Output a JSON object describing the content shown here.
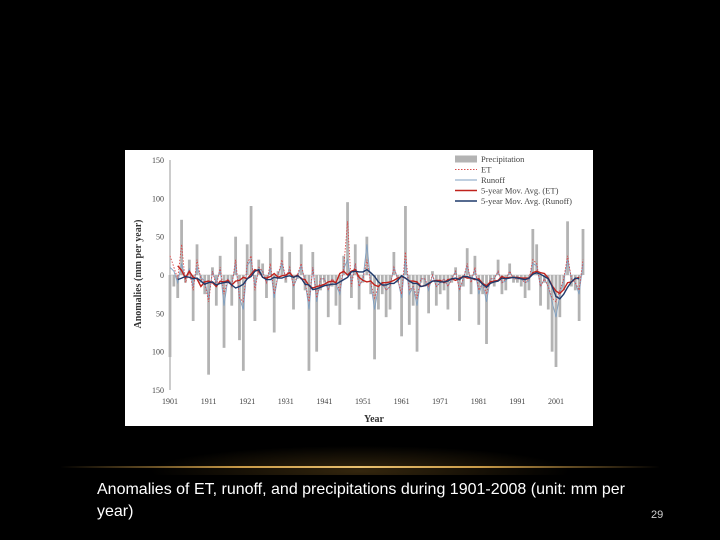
{
  "slide": {
    "caption": "Anomalies of ET, runoff, and precipitations during 1901-2008 (unit: mm per year)",
    "page_number": "29"
  },
  "colors": {
    "background": "#000000",
    "accent_line": "#c89a48",
    "precipitation": "#b3b3b3",
    "et": "#d94a4a",
    "runoff": "#7f9fc0",
    "et_ma": "#c0221c",
    "runoff_ma": "#1f3a6b"
  },
  "chart_data": {
    "type": "bar",
    "title": "",
    "xlabel": "Year",
    "ylabel": "Anomalies (mm per year)",
    "xlim": [
      1901,
      2008
    ],
    "ylim": [
      -150,
      150
    ],
    "xticks": [
      1901,
      1911,
      1921,
      1931,
      1941,
      1951,
      1961,
      1971,
      1981,
      1991,
      2001
    ],
    "yticks": [
      150,
      100,
      50,
      0,
      -50,
      -100,
      -150
    ],
    "x": [
      1901,
      1902,
      1903,
      1904,
      1905,
      1906,
      1907,
      1908,
      1909,
      1910,
      1911,
      1912,
      1913,
      1914,
      1915,
      1916,
      1917,
      1918,
      1919,
      1920,
      1921,
      1922,
      1923,
      1924,
      1925,
      1926,
      1927,
      1928,
      1929,
      1930,
      1931,
      1932,
      1933,
      1934,
      1935,
      1936,
      1937,
      1938,
      1939,
      1940,
      1941,
      1942,
      1943,
      1944,
      1945,
      1946,
      1947,
      1948,
      1949,
      1950,
      1951,
      1952,
      1953,
      1954,
      1955,
      1956,
      1957,
      1958,
      1959,
      1960,
      1961,
      1962,
      1963,
      1964,
      1965,
      1966,
      1967,
      1968,
      1969,
      1970,
      1971,
      1972,
      1973,
      1974,
      1975,
      1976,
      1977,
      1978,
      1979,
      1980,
      1981,
      1982,
      1983,
      1984,
      1985,
      1986,
      1987,
      1988,
      1989,
      1990,
      1991,
      1992,
      1993,
      1994,
      1995,
      1996,
      1997,
      1998,
      1999,
      2000,
      2001,
      2002,
      2003,
      2004,
      2005,
      2006,
      2007,
      2008
    ],
    "legend": {
      "placement": "top-right",
      "entries": [
        "Precipitation",
        "ET",
        "Runoff",
        "5-year Mov. Avg. (ET)",
        "5-year Mov. Avg. (Runoff)"
      ]
    },
    "series": [
      {
        "name": "Precipitation",
        "kind": "bar",
        "values": [
          -107,
          -15,
          -30,
          72,
          -10,
          20,
          -60,
          40,
          -10,
          -25,
          -130,
          10,
          -40,
          25,
          -95,
          -10,
          -40,
          50,
          -85,
          -125,
          40,
          90,
          -60,
          20,
          15,
          -30,
          35,
          -75,
          5,
          50,
          -10,
          30,
          -45,
          -5,
          40,
          -20,
          -125,
          30,
          -100,
          -20,
          -10,
          -55,
          -15,
          -40,
          -65,
          25,
          95,
          -30,
          40,
          -45,
          -10,
          50,
          -25,
          -110,
          -45,
          -25,
          -55,
          -45,
          30,
          -10,
          -80,
          90,
          -65,
          -40,
          -100,
          -10,
          -15,
          -50,
          5,
          -40,
          -25,
          -20,
          -45,
          -10,
          10,
          -60,
          -15,
          35,
          -25,
          25,
          -65,
          -25,
          -90,
          -10,
          -15,
          20,
          -25,
          -20,
          15,
          -10,
          -10,
          -15,
          -30,
          -20,
          60,
          40,
          -40,
          -10,
          -45,
          -100,
          -120,
          -55,
          -20,
          70,
          -15,
          -20,
          -60,
          60
        ]
      },
      {
        "name": "ET",
        "kind": "line",
        "values": [
          25,
          10,
          -5,
          40,
          -10,
          5,
          -20,
          20,
          -5,
          -10,
          -35,
          5,
          -15,
          10,
          -25,
          -5,
          -15,
          20,
          -30,
          -35,
          15,
          25,
          -20,
          10,
          5,
          -10,
          15,
          -25,
          0,
          20,
          -5,
          10,
          -15,
          0,
          15,
          -10,
          -35,
          10,
          -30,
          -5,
          -5,
          -20,
          -5,
          -10,
          -20,
          10,
          70,
          -15,
          15,
          -15,
          -5,
          20,
          -10,
          -30,
          -15,
          -10,
          -20,
          -15,
          10,
          -5,
          -25,
          30,
          -20,
          -15,
          -30,
          -5,
          -5,
          -15,
          0,
          -15,
          -10,
          -5,
          -15,
          -5,
          5,
          -20,
          -5,
          15,
          -10,
          10,
          -20,
          -10,
          -25,
          -5,
          -5,
          5,
          -10,
          -5,
          5,
          -5,
          -5,
          -5,
          -10,
          -5,
          20,
          15,
          -15,
          -5,
          -15,
          -30,
          -35,
          -20,
          -5,
          25,
          -5,
          -10,
          -20,
          20
        ]
      },
      {
        "name": "Runoff",
        "kind": "line",
        "values": [
          10,
          5,
          -10,
          15,
          -5,
          8,
          -15,
          10,
          -3,
          -8,
          -30,
          5,
          -10,
          8,
          -40,
          -5,
          -12,
          15,
          -30,
          -45,
          12,
          20,
          -15,
          8,
          5,
          -10,
          10,
          -30,
          0,
          15,
          -5,
          8,
          -15,
          -3,
          12,
          -8,
          -45,
          10,
          -35,
          -5,
          -5,
          -20,
          -5,
          -12,
          -25,
          8,
          20,
          -10,
          15,
          -15,
          -5,
          40,
          -10,
          -45,
          -15,
          -10,
          -20,
          -15,
          10,
          -5,
          -30,
          20,
          -25,
          -15,
          -40,
          -5,
          -5,
          -20,
          0,
          -15,
          -10,
          -5,
          -15,
          -5,
          5,
          -20,
          -5,
          12,
          -8,
          8,
          -25,
          -10,
          -35,
          -5,
          -5,
          5,
          -10,
          -8,
          5,
          -5,
          -5,
          -5,
          -10,
          -8,
          15,
          12,
          -15,
          -5,
          -15,
          -35,
          -55,
          -25,
          -8,
          20,
          -5,
          -10,
          -25,
          15
        ]
      },
      {
        "name": "5-year Mov. Avg. (ET)",
        "kind": "line",
        "values": [
          null,
          null,
          12,
          6,
          -4,
          5,
          -3,
          -5,
          -15,
          -9,
          -8,
          -10,
          -15,
          -8,
          -9,
          -7,
          -13,
          -8,
          -7,
          -3,
          -5,
          1,
          7,
          5,
          -3,
          -4,
          -2,
          2,
          -3,
          -1,
          0,
          3,
          -3,
          0,
          -5,
          -6,
          -14,
          -17,
          -15,
          -14,
          -12,
          -9,
          -8,
          -10,
          2,
          5,
          0,
          5,
          7,
          -3,
          -7,
          -9,
          -8,
          -13,
          -15,
          -10,
          -10,
          -9,
          -7,
          -4,
          -2,
          -4,
          -8,
          -8,
          -9,
          -15,
          -14,
          -12,
          -8,
          -7,
          -7,
          -10,
          -6,
          -5,
          -7,
          -4,
          -2,
          -4,
          -4,
          -6,
          -5,
          -11,
          -14,
          -9,
          -8,
          -7,
          -2,
          -4,
          -3,
          -3,
          -3,
          -4,
          -4,
          -4,
          3,
          5,
          3,
          2,
          -4,
          -14,
          -21,
          -24,
          -19,
          -10,
          -9,
          -5,
          -3,
          null
        ]
      },
      {
        "name": "5-year Mov. Avg. (Runoff)",
        "kind": "line",
        "values": [
          null,
          null,
          -6,
          -4,
          -2,
          -3,
          -5,
          -4,
          -8,
          -12,
          -10,
          -9,
          -13,
          -11,
          -10,
          -9,
          -13,
          -17,
          -15,
          -12,
          -5,
          -2,
          5,
          7,
          -3,
          -6,
          -6,
          -3,
          -4,
          -4,
          -2,
          -1,
          -3,
          -1,
          -4,
          -12,
          -13,
          -19,
          -18,
          -16,
          -14,
          -13,
          -12,
          -12,
          -9,
          -6,
          -3,
          4,
          5,
          4,
          4,
          7,
          3,
          -2,
          -9,
          -13,
          -13,
          -11,
          -11,
          -7,
          -1,
          -4,
          -8,
          -11,
          -11,
          -15,
          -14,
          -11,
          -8,
          -8,
          -9,
          -9,
          -8,
          -5,
          -4,
          -6,
          -2,
          -2,
          -4,
          -5,
          -7,
          -12,
          -16,
          -11,
          -9,
          -8,
          -4,
          -5,
          -4,
          -3,
          -4,
          -5,
          -6,
          -4,
          1,
          3,
          1,
          -2,
          -5,
          -15,
          -28,
          -31,
          -25,
          -16,
          -9,
          -4,
          -5,
          null
        ]
      }
    ]
  }
}
